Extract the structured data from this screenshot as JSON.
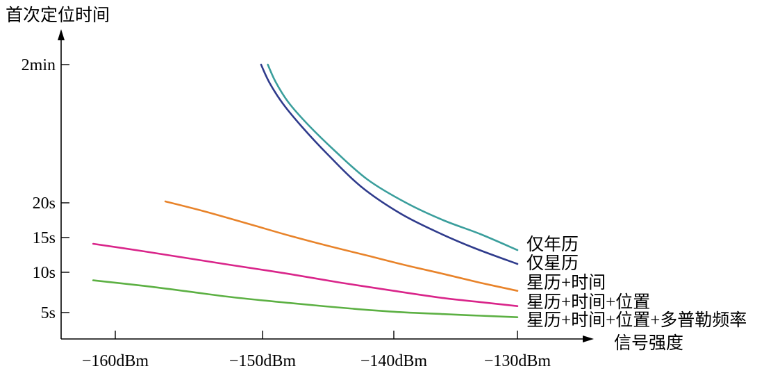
{
  "chart_data": {
    "type": "line",
    "ylabel": "首次定位时间",
    "xlabel": "信号强度",
    "x_ticks": [
      {
        "value": -160,
        "label": "−160dBm"
      },
      {
        "value": -150,
        "label": "−150dBm"
      },
      {
        "value": -140,
        "label": "−140dBm"
      },
      {
        "value": -130,
        "label": "−130dBm"
      }
    ],
    "y_ticks": [
      {
        "value": 5,
        "label": "5s"
      },
      {
        "value": 10,
        "label": "10s"
      },
      {
        "value": 15,
        "label": "15s"
      },
      {
        "value": 20,
        "label": "20s"
      },
      {
        "value": 120,
        "label": "2min"
      }
    ],
    "y_scale": "nonlinear (ticks 5s,10s,15s,20s evenly spaced; 2min far above)",
    "grid": false,
    "legend": "inline labels at right end of each curve",
    "series": [
      {
        "name": "仅年历",
        "color": "#3a9e9c",
        "points": [
          [
            -149.6,
            120
          ],
          [
            -149.0,
            80
          ],
          [
            -148.0,
            55
          ],
          [
            -146.5,
            42
          ],
          [
            -144.5,
            32
          ],
          [
            -142.0,
            25
          ],
          [
            -139.0,
            20
          ],
          [
            -136.0,
            17.5
          ],
          [
            -133.0,
            15.5
          ],
          [
            -130.0,
            13.2
          ]
        ]
      },
      {
        "name": "仅星历",
        "color": "#2f3b8c",
        "points": [
          [
            -150.1,
            120
          ],
          [
            -149.5,
            80
          ],
          [
            -148.5,
            55
          ],
          [
            -147.0,
            41
          ],
          [
            -145.0,
            30.5
          ],
          [
            -142.5,
            23.5
          ],
          [
            -139.5,
            18.5
          ],
          [
            -136.5,
            15.8
          ],
          [
            -133.5,
            13.5
          ],
          [
            -130.0,
            11.2
          ]
        ]
      },
      {
        "name": "星历+时间",
        "color": "#e8832a",
        "points": [
          [
            -156.6,
            20.3
          ],
          [
            -154.0,
            18.8
          ],
          [
            -151.0,
            17.0
          ],
          [
            -148.0,
            15.3
          ],
          [
            -145.0,
            13.8
          ],
          [
            -142.0,
            12.4
          ],
          [
            -139.0,
            11.0
          ],
          [
            -136.0,
            9.8
          ],
          [
            -133.0,
            8.7
          ],
          [
            -130.0,
            7.7
          ]
        ]
      },
      {
        "name": "星历+时间+位置",
        "color": "#d9258a",
        "points": [
          [
            -161.5,
            14.1
          ],
          [
            -158.0,
            13.0
          ],
          [
            -155.0,
            12.0
          ],
          [
            -152.0,
            11.0
          ],
          [
            -148.0,
            9.8
          ],
          [
            -144.0,
            8.7
          ],
          [
            -140.0,
            7.7
          ],
          [
            -136.0,
            6.8
          ],
          [
            -133.0,
            6.3
          ],
          [
            -130.0,
            5.8
          ]
        ]
      },
      {
        "name": "星历+时间+位置+多普勒频率",
        "color": "#5cb043",
        "points": [
          [
            -161.5,
            9.0
          ],
          [
            -158.0,
            8.3
          ],
          [
            -155.0,
            7.6
          ],
          [
            -152.0,
            6.9
          ],
          [
            -148.0,
            6.2
          ],
          [
            -144.0,
            5.6
          ],
          [
            -140.0,
            5.1
          ],
          [
            -136.0,
            4.8
          ],
          [
            -133.0,
            4.6
          ],
          [
            -130.0,
            4.4
          ]
        ]
      }
    ]
  }
}
